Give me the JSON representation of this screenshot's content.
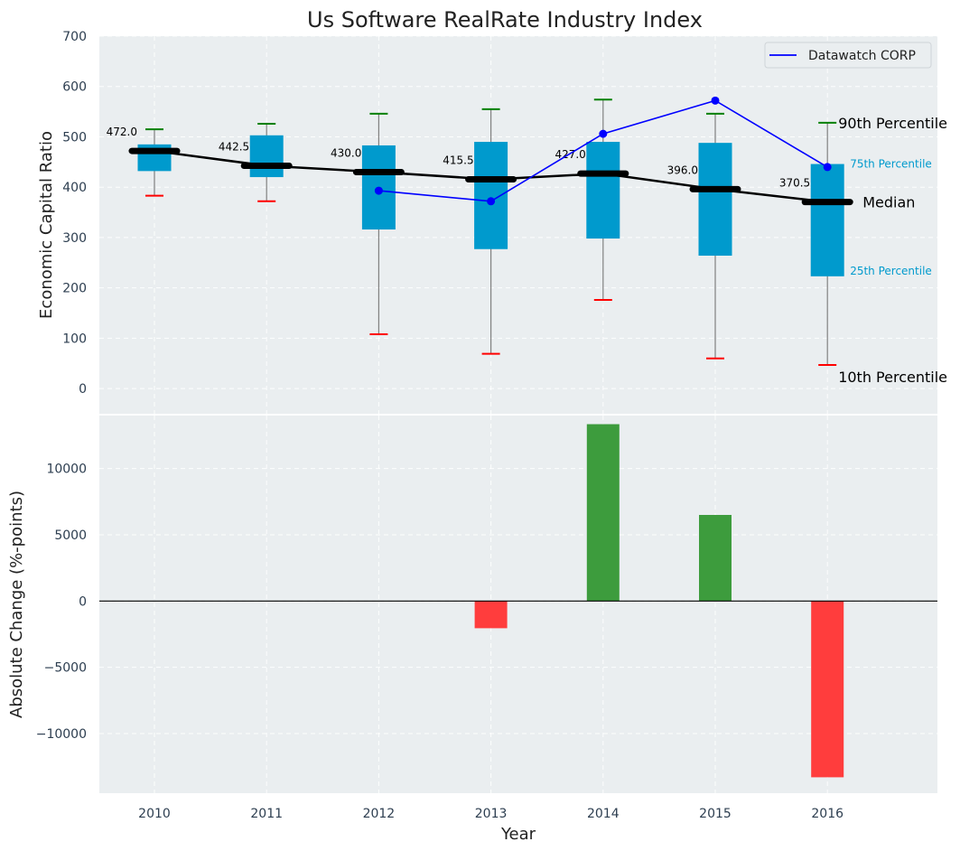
{
  "chart_data": [
    {
      "type": "box",
      "title": "Us Software RealRate Industry Index",
      "ylabel": "Economic Capital Ratio",
      "ylim": [
        -50,
        700
      ],
      "yticks": [
        0,
        100,
        200,
        300,
        400,
        500,
        600,
        700
      ],
      "grid": true,
      "legend": {
        "placement": "top-right",
        "entries": [
          "Datawatch CORP"
        ]
      },
      "categories": [
        "2010",
        "2011",
        "2012",
        "2013",
        "2014",
        "2015",
        "2016"
      ],
      "boxes": [
        {
          "year": "2010",
          "p10": 383,
          "p25": 432,
          "median": 472.0,
          "p75": 485,
          "p90": 515,
          "median_label": "472.0"
        },
        {
          "year": "2011",
          "p10": 372,
          "p25": 420,
          "median": 442.5,
          "p75": 503,
          "p90": 526,
          "median_label": "442.5"
        },
        {
          "year": "2012",
          "p10": 108,
          "p25": 316,
          "median": 430.0,
          "p75": 483,
          "p90": 546,
          "median_label": "430.0"
        },
        {
          "year": "2013",
          "p10": 69,
          "p25": 277,
          "median": 415.5,
          "p75": 490,
          "p90": 555,
          "median_label": "415.5"
        },
        {
          "year": "2014",
          "p10": 176,
          "p25": 298,
          "median": 427.0,
          "p75": 490,
          "p90": 574,
          "median_label": "427.0"
        },
        {
          "year": "2015",
          "p10": 60,
          "p25": 264,
          "median": 396.0,
          "p75": 488,
          "p90": 546,
          "median_label": "396.0"
        },
        {
          "year": "2016",
          "p10": 47,
          "p25": 223,
          "median": 370.5,
          "p75": 446,
          "p90": 528,
          "median_label": "370.5"
        }
      ],
      "series": [
        {
          "name": "Datawatch CORP",
          "x": [
            "2012",
            "2013",
            "2014",
            "2015",
            "2016"
          ],
          "values": [
            393,
            372,
            506,
            572,
            440
          ]
        }
      ],
      "annotations": {
        "p90": "90th Percentile",
        "p75": "75th Percentile",
        "median": "Median",
        "p25": "25th Percentile",
        "p10": "10th Percentile"
      },
      "colors": {
        "box": "#009ACD",
        "median_line": "#000000",
        "whisker": "#808080",
        "cap_top": "#008000",
        "cap_bottom": "#FF0000",
        "company_line": "#0000FF",
        "background": "#EAEEF0",
        "annot_box": "#009ACD"
      }
    },
    {
      "type": "bar",
      "xlabel": "Year",
      "ylabel": "Absolute Change (%-points)",
      "ylim": [
        -14500,
        14000
      ],
      "yticks": [
        -10000,
        -5000,
        0,
        5000,
        10000
      ],
      "ytick_labels": [
        "−10000",
        "−5000",
        "0",
        "5000",
        "10000"
      ],
      "grid": true,
      "categories": [
        "2010",
        "2011",
        "2012",
        "2013",
        "2014",
        "2015",
        "2016"
      ],
      "values": [
        0,
        0,
        0,
        -2050,
        13350,
        6500,
        -13300
      ],
      "colors": {
        "positive": "#3D9C3D",
        "negative": "#FF3D3D",
        "zero_line": "#000000"
      }
    }
  ]
}
